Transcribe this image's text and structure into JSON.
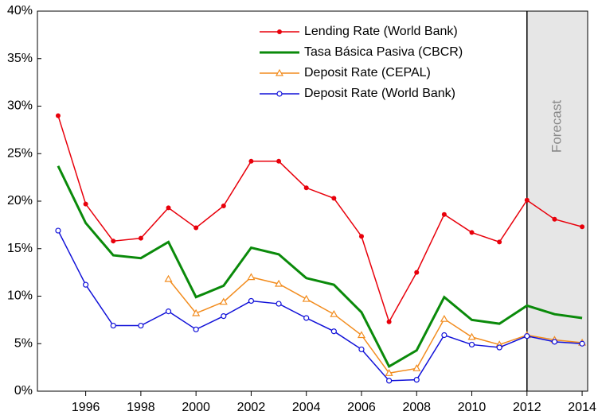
{
  "chart_data": {
    "type": "line",
    "x": [
      1995,
      1996,
      1997,
      1998,
      1999,
      2000,
      2001,
      2002,
      2003,
      2004,
      2005,
      2006,
      2007,
      2008,
      2009,
      2010,
      2011,
      2012,
      2013,
      2014
    ],
    "series": [
      {
        "name": "Lending Rate (World Bank)",
        "color": "#e8000b",
        "marker": "filled-circle",
        "values": [
          29.0,
          19.7,
          15.8,
          16.1,
          19.3,
          17.2,
          19.5,
          24.2,
          24.2,
          21.4,
          20.3,
          16.3,
          7.3,
          12.5,
          18.6,
          16.7,
          15.7,
          20.1,
          18.1,
          17.3
        ]
      },
      {
        "name": "Tasa Básica Pasiva (CBCR)",
        "color": "#0a8a0a",
        "marker": "none",
        "values": [
          23.7,
          17.7,
          14.3,
          14.0,
          15.7,
          9.9,
          11.1,
          15.1,
          14.4,
          11.9,
          11.2,
          8.3,
          2.6,
          4.3,
          9.9,
          7.5,
          7.1,
          9.0,
          8.1,
          7.7
        ]
      },
      {
        "name": "Deposit Rate (CEPAL)",
        "color": "#f28c1e",
        "marker": "open-triangle",
        "values": [
          null,
          null,
          null,
          null,
          11.8,
          8.2,
          9.4,
          12.0,
          11.3,
          9.7,
          8.1,
          5.9,
          1.9,
          2.4,
          7.6,
          5.7,
          4.9,
          5.9,
          5.4,
          5.1
        ]
      },
      {
        "name": "Deposit Rate (World Bank)",
        "color": "#1010d8",
        "marker": "open-circle",
        "values": [
          16.9,
          11.2,
          6.9,
          6.9,
          8.4,
          6.5,
          7.9,
          9.5,
          9.2,
          7.7,
          6.3,
          4.4,
          1.1,
          1.2,
          5.9,
          4.9,
          4.6,
          5.8,
          5.2,
          5.0
        ]
      }
    ],
    "xlim": [
      1994.25,
      2014.2
    ],
    "xticks": [
      1996,
      1998,
      2000,
      2002,
      2004,
      2006,
      2008,
      2010,
      2012,
      2014
    ],
    "ylim": [
      0,
      40
    ],
    "yticks": [
      {
        "value": 0,
        "label": "0%"
      },
      {
        "value": 5,
        "label": "5%"
      },
      {
        "value": 10,
        "label": "10%"
      },
      {
        "value": 15,
        "label": "15%"
      },
      {
        "value": 20,
        "label": "20%"
      },
      {
        "value": 25,
        "label": "25%"
      },
      {
        "value": 30,
        "label": "30%"
      },
      {
        "value": 35,
        "label": "35%"
      },
      {
        "value": 40,
        "label": "40%"
      }
    ],
    "forecast_start": 2012,
    "forecast_label": "Forecast",
    "legend": "upper-center"
  }
}
